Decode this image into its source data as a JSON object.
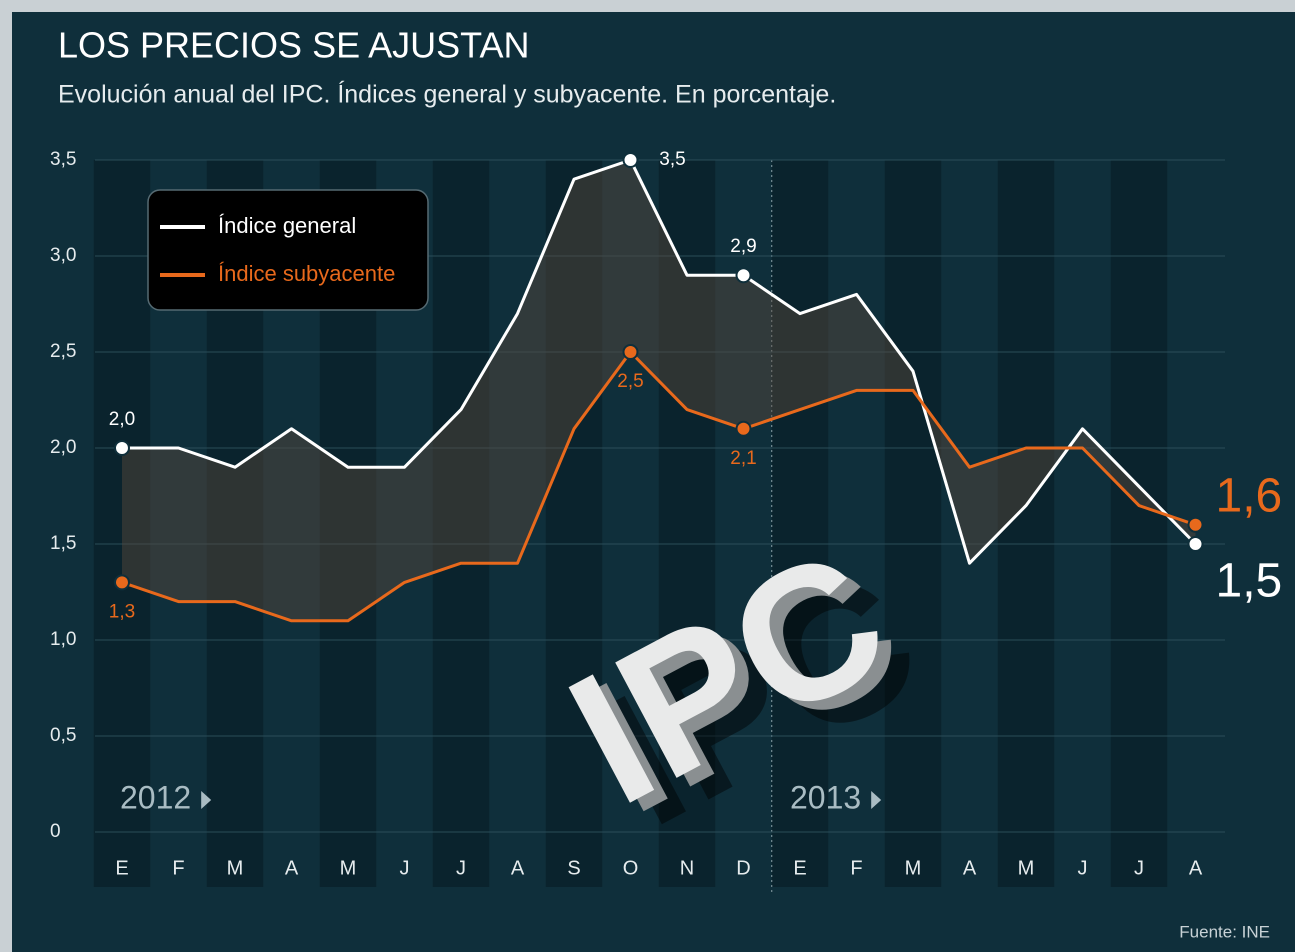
{
  "chart_data": {
    "type": "line",
    "title": "LOS PRECIOS SE AJUSTAN",
    "subtitle": "Evolución anual del IPC. Índices general y subyacente. En porcentaje.",
    "categories": [
      "E",
      "F",
      "M",
      "A",
      "M",
      "J",
      "J",
      "A",
      "S",
      "O",
      "N",
      "D",
      "E",
      "F",
      "M",
      "A",
      "M",
      "J",
      "J",
      "A"
    ],
    "series": [
      {
        "name": "Índice general",
        "color": "#ffffff",
        "values": [
          2.0,
          2.0,
          1.9,
          2.1,
          1.9,
          1.9,
          2.2,
          2.7,
          3.4,
          3.5,
          2.9,
          2.9,
          2.7,
          2.8,
          2.4,
          1.4,
          1.7,
          2.1,
          1.8,
          1.5
        ],
        "value_labels": [
          "2,0",
          null,
          null,
          null,
          null,
          null,
          null,
          null,
          null,
          "3,5",
          null,
          "2,9",
          null,
          null,
          null,
          null,
          null,
          null,
          null,
          "1,5"
        ]
      },
      {
        "name": "Índice subyacente",
        "color": "#e8691c",
        "values": [
          1.3,
          1.2,
          1.2,
          1.1,
          1.1,
          1.3,
          1.4,
          1.4,
          2.1,
          2.5,
          2.2,
          2.1,
          2.2,
          2.3,
          2.3,
          1.9,
          2.0,
          2.0,
          1.7,
          1.6
        ],
        "value_labels": [
          "1,3",
          null,
          null,
          null,
          null,
          null,
          null,
          null,
          null,
          "2,5",
          null,
          "2,1",
          null,
          null,
          null,
          null,
          null,
          null,
          null,
          "1,6"
        ]
      }
    ],
    "ylim": [
      0,
      3.5
    ],
    "yticks": [
      0,
      {
        "value": 0.5,
        "label": "0,5"
      },
      {
        "value": 1.0,
        "label": "1,0"
      },
      {
        "value": 1.5,
        "label": "1,5"
      },
      {
        "value": 2.0,
        "label": "2,0"
      },
      {
        "value": 2.5,
        "label": "2,5"
      },
      {
        "value": 3.0,
        "label": "3,0"
      },
      {
        "value": 3.5,
        "label": "3,5"
      }
    ],
    "grid": true,
    "legend": "upper left",
    "annotations": [
      "2012",
      "2013",
      "IPC"
    ],
    "source": "Fuente: INE"
  }
}
